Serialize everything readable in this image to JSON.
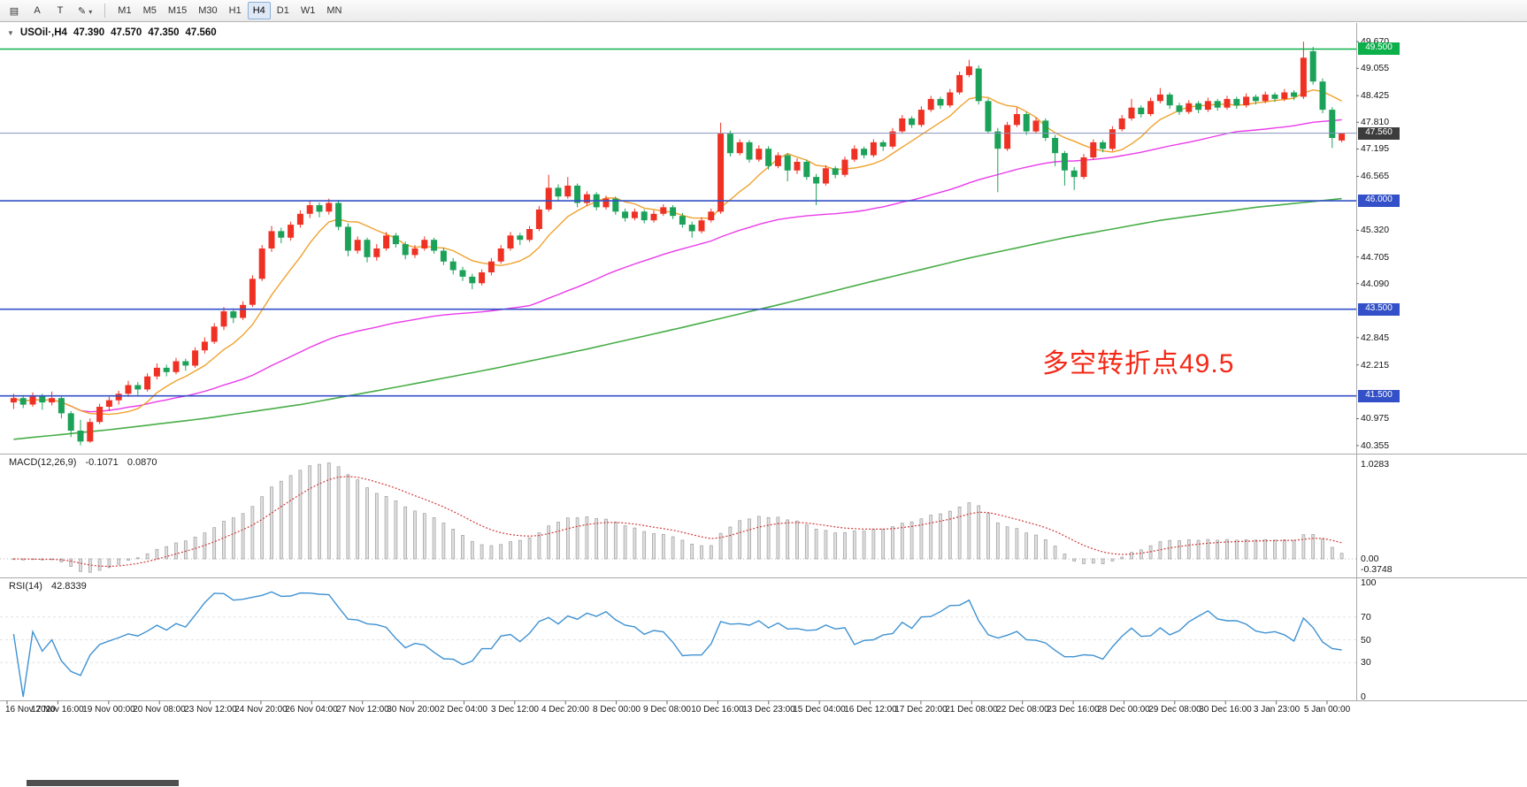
{
  "toolbar": {
    "icons": [
      {
        "name": "chart-list-icon",
        "glyph": "▤"
      },
      {
        "name": "text-annotation",
        "label": "A"
      },
      {
        "name": "text-label",
        "label": "T"
      },
      {
        "name": "draw-tools",
        "glyph": "✎",
        "dropdown": "▾"
      }
    ],
    "timeframes": [
      "M1",
      "M5",
      "M15",
      "M30",
      "H1",
      "H4",
      "D1",
      "W1",
      "MN"
    ],
    "active_timeframe": "H4"
  },
  "chart_header": {
    "dropdown_glyph": "▼",
    "symbol": "USOil·,H4",
    "open": "47.390",
    "high": "47.570",
    "low": "47.350",
    "close": "47.560"
  },
  "annotation": {
    "text": "多空转折点49.5",
    "color": "#f42816"
  },
  "chart_data": {
    "type": "candlestick",
    "title": "USOil H4",
    "price_range": [
      40.21,
      50.06
    ],
    "bull_color": "#ef3124",
    "bear_color": "#1ba158",
    "price_ticks": [
      "49.670",
      "49.055",
      "48.425",
      "47.810",
      "47.195",
      "46.565",
      "45.320",
      "44.705",
      "44.090",
      "42.845",
      "42.215",
      "40.975",
      "40.355"
    ],
    "price_badges": [
      {
        "text": "49.500",
        "bg": "#0cb04a"
      },
      {
        "text": "47.560",
        "bg": "#3c3c3c"
      },
      {
        "text": "46.000",
        "bg": "#3350c8"
      },
      {
        "text": "43.500",
        "bg": "#3350c8"
      },
      {
        "text": "41.500",
        "bg": "#3350c8"
      }
    ],
    "time_labels": [
      "16 Nov 2020",
      "17 Nov 16:00",
      "19 Nov 00:00",
      "20 Nov 08:00",
      "23 Nov 12:00",
      "24 Nov 20:00",
      "26 Nov 04:00",
      "27 Nov 12:00",
      "30 Nov 20:00",
      "2 Dec 04:00",
      "3 Dec 12:00",
      "4 Dec 20:00",
      "8 Dec 00:00",
      "9 Dec 08:00",
      "10 Dec 16:00",
      "13 Dec 23:00",
      "15 Dec 04:00",
      "16 Dec 12:00",
      "17 Dec 20:00",
      "21 Dec 08:00",
      "22 Dec 08:00",
      "23 Dec 16:00",
      "28 Dec 00:00",
      "29 Dec 08:00",
      "30 Dec 16:00",
      "3 Jan 23:00",
      "5 Jan 00:00"
    ],
    "hlines": [
      {
        "price": 49.5,
        "color": "#0cb04a",
        "width": 1.6,
        "label": "49.500"
      },
      {
        "price": 46.0,
        "color": "#3350c8",
        "width": 1.6,
        "label": "46.000"
      },
      {
        "price": 43.5,
        "color": "#3350c8",
        "width": 1.6,
        "label": "43.500"
      },
      {
        "price": 41.5,
        "color": "#3350c8",
        "width": 1.6,
        "label": "41.500"
      },
      {
        "price": 47.56,
        "color": "#8a93c0",
        "width": 1.0,
        "label": "47.560",
        "current": true
      }
    ],
    "ma_fast": {
      "period": 8,
      "color": "#f0a22e"
    },
    "ma_mid": {
      "period": 55,
      "color": "#ea3bea"
    },
    "ma_slow": {
      "color": "#47ad47",
      "points": [
        [
          0,
          40.5
        ],
        [
          10,
          40.72
        ],
        [
          20,
          40.98
        ],
        [
          30,
          41.3
        ],
        [
          40,
          41.7
        ],
        [
          50,
          42.12
        ],
        [
          60,
          42.58
        ],
        [
          70,
          43.08
        ],
        [
          80,
          43.6
        ],
        [
          90,
          44.15
        ],
        [
          100,
          44.68
        ],
        [
          110,
          45.15
        ],
        [
          120,
          45.55
        ],
        [
          130,
          45.85
        ],
        [
          139,
          46.05
        ]
      ]
    },
    "candles": [
      [
        41.35,
        41.55,
        41.2,
        41.45
      ],
      [
        41.45,
        41.52,
        41.22,
        41.3
      ],
      [
        41.3,
        41.58,
        41.25,
        41.5
      ],
      [
        41.5,
        41.55,
        41.18,
        41.35
      ],
      [
        41.35,
        41.6,
        41.28,
        41.45
      ],
      [
        41.45,
        41.5,
        40.98,
        41.1
      ],
      [
        41.1,
        41.15,
        40.55,
        40.7
      ],
      [
        40.7,
        40.95,
        40.36,
        40.45
      ],
      [
        40.45,
        40.98,
        40.42,
        40.9
      ],
      [
        40.9,
        41.32,
        40.85,
        41.25
      ],
      [
        41.25,
        41.48,
        41.15,
        41.4
      ],
      [
        41.4,
        41.62,
        41.3,
        41.55
      ],
      [
        41.55,
        41.85,
        41.48,
        41.75
      ],
      [
        41.75,
        41.82,
        41.52,
        41.65
      ],
      [
        41.65,
        42.02,
        41.6,
        41.95
      ],
      [
        41.95,
        42.25,
        41.88,
        42.15
      ],
      [
        42.15,
        42.22,
        41.95,
        42.05
      ],
      [
        42.05,
        42.38,
        42.0,
        42.3
      ],
      [
        42.3,
        42.36,
        42.08,
        42.2
      ],
      [
        42.2,
        42.62,
        42.15,
        42.55
      ],
      [
        42.55,
        42.85,
        42.48,
        42.75
      ],
      [
        42.75,
        43.18,
        42.7,
        43.1
      ],
      [
        43.1,
        43.55,
        43.02,
        43.45
      ],
      [
        43.45,
        43.52,
        43.18,
        43.3
      ],
      [
        43.3,
        43.68,
        43.25,
        43.6
      ],
      [
        43.6,
        44.28,
        43.55,
        44.2
      ],
      [
        44.2,
        44.98,
        44.15,
        44.9
      ],
      [
        44.9,
        45.42,
        44.82,
        45.3
      ],
      [
        45.3,
        45.38,
        45.02,
        45.15
      ],
      [
        45.15,
        45.52,
        45.08,
        45.45
      ],
      [
        45.45,
        45.78,
        45.38,
        45.7
      ],
      [
        45.7,
        46.0,
        45.6,
        45.9
      ],
      [
        45.9,
        45.96,
        45.62,
        45.75
      ],
      [
        45.75,
        46.05,
        45.68,
        45.95
      ],
      [
        45.95,
        46.02,
        45.32,
        45.4
      ],
      [
        45.4,
        45.48,
        44.72,
        44.85
      ],
      [
        44.85,
        45.18,
        44.78,
        45.1
      ],
      [
        45.1,
        45.15,
        44.58,
        44.7
      ],
      [
        44.7,
        45.0,
        44.62,
        44.9
      ],
      [
        44.9,
        45.28,
        44.85,
        45.2
      ],
      [
        45.2,
        45.26,
        44.92,
        45.0
      ],
      [
        45.0,
        45.06,
        44.65,
        44.75
      ],
      [
        44.75,
        44.98,
        44.68,
        44.9
      ],
      [
        44.9,
        45.18,
        44.85,
        45.1
      ],
      [
        45.1,
        45.15,
        44.78,
        44.85
      ],
      [
        44.85,
        44.92,
        44.52,
        44.6
      ],
      [
        44.6,
        44.68,
        44.3,
        44.4
      ],
      [
        44.4,
        44.48,
        44.15,
        44.25
      ],
      [
        44.25,
        44.32,
        43.96,
        44.1
      ],
      [
        44.1,
        44.42,
        44.05,
        44.35
      ],
      [
        44.35,
        44.68,
        44.28,
        44.6
      ],
      [
        44.6,
        44.98,
        44.55,
        44.9
      ],
      [
        44.9,
        45.28,
        44.85,
        45.2
      ],
      [
        45.2,
        45.26,
        44.98,
        45.1
      ],
      [
        45.1,
        45.42,
        45.05,
        45.35
      ],
      [
        45.35,
        45.88,
        45.3,
        45.8
      ],
      [
        45.8,
        46.6,
        45.75,
        46.3
      ],
      [
        46.3,
        46.38,
        46.0,
        46.1
      ],
      [
        46.1,
        46.55,
        46.05,
        46.35
      ],
      [
        46.35,
        46.4,
        45.85,
        45.95
      ],
      [
        45.95,
        46.22,
        45.88,
        46.15
      ],
      [
        46.15,
        46.2,
        45.78,
        45.85
      ],
      [
        45.85,
        46.12,
        45.8,
        46.05
      ],
      [
        46.05,
        46.1,
        45.68,
        45.75
      ],
      [
        45.75,
        45.82,
        45.52,
        45.6
      ],
      [
        45.6,
        45.82,
        45.55,
        45.75
      ],
      [
        45.75,
        45.8,
        45.48,
        45.55
      ],
      [
        45.55,
        45.78,
        45.5,
        45.7
      ],
      [
        45.7,
        45.92,
        45.65,
        45.85
      ],
      [
        45.85,
        45.9,
        45.58,
        45.65
      ],
      [
        45.65,
        45.72,
        45.38,
        45.45
      ],
      [
        45.45,
        45.52,
        45.15,
        45.3
      ],
      [
        45.3,
        45.62,
        45.25,
        45.55
      ],
      [
        45.55,
        45.82,
        45.5,
        45.75
      ],
      [
        45.75,
        47.8,
        45.7,
        47.55
      ],
      [
        47.55,
        47.62,
        47.02,
        47.1
      ],
      [
        47.1,
        47.42,
        47.05,
        47.35
      ],
      [
        47.35,
        47.4,
        46.88,
        46.95
      ],
      [
        46.95,
        47.28,
        46.9,
        47.2
      ],
      [
        47.2,
        47.26,
        46.72,
        46.8
      ],
      [
        46.8,
        47.12,
        46.75,
        47.05
      ],
      [
        47.05,
        47.1,
        46.45,
        46.7
      ],
      [
        46.7,
        46.98,
        46.62,
        46.9
      ],
      [
        46.9,
        46.95,
        46.48,
        46.55
      ],
      [
        46.55,
        46.62,
        45.9,
        46.4
      ],
      [
        46.4,
        46.82,
        46.35,
        46.75
      ],
      [
        46.75,
        46.8,
        46.52,
        46.6
      ],
      [
        46.6,
        47.02,
        46.55,
        46.95
      ],
      [
        46.95,
        47.28,
        46.9,
        47.2
      ],
      [
        47.2,
        47.25,
        46.98,
        47.05
      ],
      [
        47.05,
        47.42,
        47.0,
        47.35
      ],
      [
        47.35,
        47.4,
        47.15,
        47.25
      ],
      [
        47.25,
        47.68,
        47.2,
        47.6
      ],
      [
        47.6,
        47.98,
        47.55,
        47.9
      ],
      [
        47.9,
        47.95,
        47.68,
        47.75
      ],
      [
        47.75,
        48.18,
        47.7,
        48.1
      ],
      [
        48.1,
        48.42,
        48.05,
        48.35
      ],
      [
        48.35,
        48.4,
        48.12,
        48.2
      ],
      [
        48.2,
        48.58,
        48.15,
        48.5
      ],
      [
        48.5,
        48.98,
        48.45,
        48.9
      ],
      [
        48.9,
        49.25,
        48.85,
        49.1
      ],
      [
        49.05,
        49.12,
        48.22,
        48.3
      ],
      [
        48.3,
        48.36,
        47.55,
        47.6
      ],
      [
        47.6,
        47.68,
        46.2,
        47.2
      ],
      [
        47.2,
        47.82,
        47.15,
        47.75
      ],
      [
        47.75,
        48.15,
        47.7,
        48.0
      ],
      [
        48.0,
        48.05,
        47.52,
        47.6
      ],
      [
        47.6,
        47.92,
        47.55,
        47.85
      ],
      [
        47.85,
        47.9,
        47.38,
        47.45
      ],
      [
        47.45,
        47.52,
        46.8,
        47.1
      ],
      [
        47.1,
        47.15,
        46.35,
        46.7
      ],
      [
        46.7,
        46.78,
        46.25,
        46.55
      ],
      [
        46.55,
        47.08,
        46.5,
        47.0
      ],
      [
        47.0,
        47.42,
        46.95,
        47.35
      ],
      [
        47.35,
        47.4,
        47.12,
        47.2
      ],
      [
        47.2,
        47.72,
        47.15,
        47.65
      ],
      [
        47.65,
        47.98,
        47.6,
        47.9
      ],
      [
        47.9,
        48.35,
        47.85,
        48.15
      ],
      [
        48.15,
        48.2,
        47.92,
        48.0
      ],
      [
        48.0,
        48.38,
        47.95,
        48.3
      ],
      [
        48.3,
        48.6,
        48.25,
        48.45
      ],
      [
        48.45,
        48.5,
        48.12,
        48.2
      ],
      [
        48.2,
        48.26,
        47.98,
        48.05
      ],
      [
        48.05,
        48.32,
        48.0,
        48.25
      ],
      [
        48.25,
        48.3,
        48.02,
        48.1
      ],
      [
        48.1,
        48.38,
        48.05,
        48.3
      ],
      [
        48.3,
        48.35,
        48.08,
        48.15
      ],
      [
        48.15,
        48.42,
        48.1,
        48.35
      ],
      [
        48.35,
        48.4,
        48.12,
        48.2
      ],
      [
        48.2,
        48.48,
        48.15,
        48.4
      ],
      [
        48.4,
        48.45,
        48.22,
        48.3
      ],
      [
        48.3,
        48.52,
        48.25,
        48.45
      ],
      [
        48.45,
        48.5,
        48.28,
        48.35
      ],
      [
        48.35,
        48.58,
        48.3,
        48.5
      ],
      [
        48.5,
        48.55,
        48.32,
        48.4
      ],
      [
        48.4,
        49.67,
        48.35,
        49.3
      ],
      [
        49.45,
        49.55,
        48.68,
        48.75
      ],
      [
        48.75,
        48.82,
        48.02,
        48.1
      ],
      [
        48.1,
        48.16,
        47.22,
        47.45
      ],
      [
        47.39,
        47.57,
        47.35,
        47.56
      ]
    ],
    "macd": {
      "label": "MACD(12,26,9)",
      "main_value": "-0.1071",
      "signal_value": "0.0870",
      "params": [
        12,
        26,
        9
      ],
      "axis": [
        "1.0283",
        "0.00",
        "-0.3748"
      ],
      "bar_color": "#e0e0e0",
      "bar_stroke": "#9c9c9c",
      "signal_color": "#d23b3b"
    },
    "rsi": {
      "label": "RSI(14)",
      "value": "42.8339",
      "period": 14,
      "axis": [
        "100",
        "70",
        "50",
        "30",
        "0"
      ],
      "levels": [
        70,
        50,
        30
      ],
      "line_color": "#3f92d2"
    }
  }
}
